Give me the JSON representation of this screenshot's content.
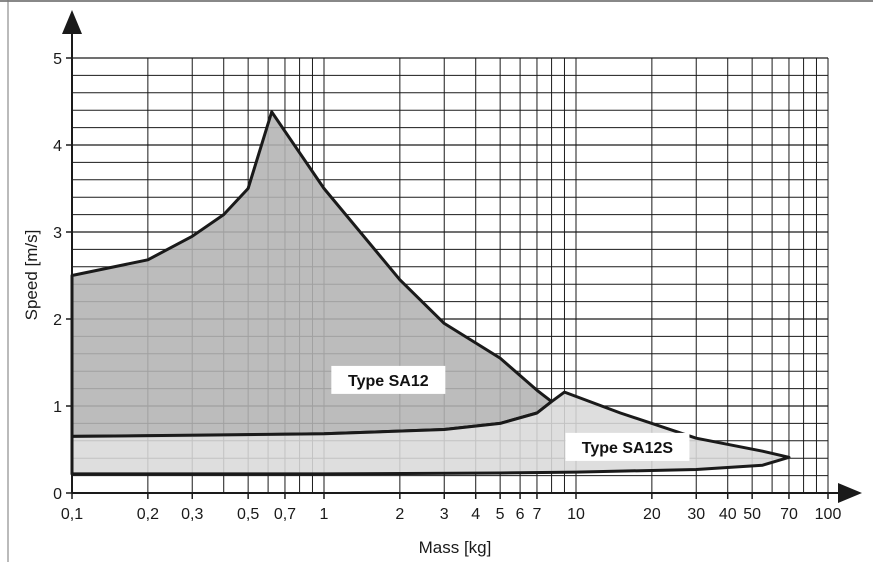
{
  "chart_data": {
    "type": "area",
    "title": "",
    "xlabel": "Mass [kg]",
    "ylabel": "Speed [m/s]",
    "x_scale": "log",
    "xlim": [
      0.1,
      100
    ],
    "ylim": [
      0,
      5
    ],
    "grid": true,
    "x_tick_labels": [
      {
        "value": 0.1,
        "label": "0,1"
      },
      {
        "value": 0.2,
        "label": "0,2"
      },
      {
        "value": 0.3,
        "label": "0,3"
      },
      {
        "value": 0.5,
        "label": "0,5"
      },
      {
        "value": 0.7,
        "label": "0,7"
      },
      {
        "value": 1,
        "label": "1"
      },
      {
        "value": 2,
        "label": "2"
      },
      {
        "value": 3,
        "label": "3"
      },
      {
        "value": 4,
        "label": "4"
      },
      {
        "value": 5,
        "label": "5"
      },
      {
        "value": 6,
        "label": "6"
      },
      {
        "value": 7,
        "label": "7"
      },
      {
        "value": 10,
        "label": "10"
      },
      {
        "value": 20,
        "label": "20"
      },
      {
        "value": 30,
        "label": "30"
      },
      {
        "value": 40,
        "label": "40"
      },
      {
        "value": 50,
        "label": "50"
      },
      {
        "value": 70,
        "label": "70"
      },
      {
        "value": 100,
        "label": "100"
      }
    ],
    "y_tick_labels": [
      {
        "value": 0,
        "label": "0"
      },
      {
        "value": 1,
        "label": "1"
      },
      {
        "value": 2,
        "label": "2"
      },
      {
        "value": 3,
        "label": "3"
      },
      {
        "value": 4,
        "label": "4"
      },
      {
        "value": 5,
        "label": "5"
      }
    ],
    "series": [
      {
        "name": "Type SA12",
        "color": "#b3b3b3",
        "points": [
          [
            0.1,
            0.65
          ],
          [
            0.3,
            0.66
          ],
          [
            1,
            0.68
          ],
          [
            3,
            0.73
          ],
          [
            5,
            0.8
          ],
          [
            7,
            0.92
          ],
          [
            8,
            1.05
          ],
          [
            7,
            1.18
          ],
          [
            5,
            1.55
          ],
          [
            3,
            1.95
          ],
          [
            2,
            2.45
          ],
          [
            1,
            3.5
          ],
          [
            0.62,
            4.38
          ],
          [
            0.5,
            3.5
          ],
          [
            0.4,
            3.2
          ],
          [
            0.3,
            2.95
          ],
          [
            0.2,
            2.68
          ],
          [
            0.1,
            2.5
          ]
        ]
      },
      {
        "name": "Type SA12S",
        "color": "#d9d9d9",
        "points": [
          [
            0.1,
            0.22
          ],
          [
            0.5,
            0.22
          ],
          [
            1,
            0.22
          ],
          [
            5,
            0.23
          ],
          [
            10,
            0.24
          ],
          [
            30,
            0.27
          ],
          [
            55,
            0.32
          ],
          [
            70,
            0.41
          ],
          [
            55,
            0.48
          ],
          [
            30,
            0.63
          ],
          [
            15,
            0.92
          ],
          [
            9,
            1.16
          ],
          [
            8,
            1.05
          ],
          [
            7,
            0.92
          ],
          [
            5,
            0.8
          ],
          [
            3,
            0.73
          ],
          [
            1,
            0.68
          ],
          [
            0.1,
            0.65
          ]
        ]
      }
    ],
    "annotations": [
      {
        "text": "Type SA12",
        "x": 1.8,
        "y": 1.3
      },
      {
        "text": "Type SA12S",
        "x": 16,
        "y": 0.53
      }
    ]
  }
}
